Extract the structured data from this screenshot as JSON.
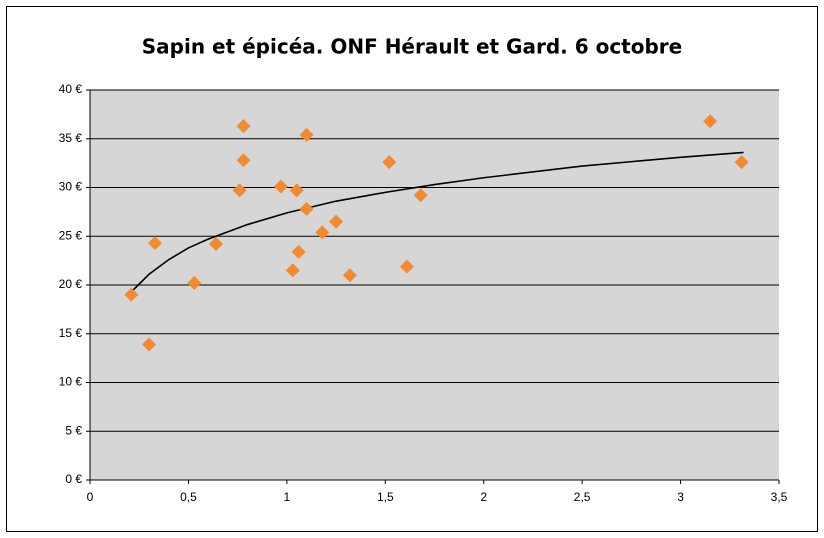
{
  "chart_data": {
    "type": "scatter",
    "title": "Sapin et épicéa. ONF Hérault et Gard. 6 octobre",
    "series": [
      {
        "color": "#f28a30",
        "x": [
          0.21,
          0.3,
          0.33,
          0.53,
          0.64,
          0.76,
          0.78,
          0.78,
          0.97,
          1.03,
          1.05,
          1.06,
          1.1,
          1.1,
          1.18,
          1.25,
          1.32,
          1.52,
          1.61,
          1.68,
          3.15,
          3.31
        ],
        "values": [
          19.0,
          13.9,
          24.3,
          20.2,
          24.2,
          29.7,
          36.3,
          32.8,
          30.1,
          21.5,
          29.7,
          23.4,
          35.4,
          27.8,
          25.4,
          26.5,
          21.0,
          32.6,
          21.9,
          29.2,
          36.8,
          32.6
        ]
      }
    ],
    "trendline": {
      "type": "logarithmic",
      "color": "#000000",
      "x": [
        0.22,
        0.3,
        0.4,
        0.5,
        0.6,
        0.8,
        1.0,
        1.25,
        1.5,
        1.75,
        2.0,
        2.5,
        3.0,
        3.32
      ],
      "values": [
        19.5,
        21.1,
        22.6,
        23.8,
        24.7,
        26.2,
        27.4,
        28.6,
        29.5,
        30.3,
        31.0,
        32.2,
        33.1,
        33.6
      ]
    },
    "xlim": [
      0,
      3.5
    ],
    "xticks": [
      0,
      {
        "value": 0.5,
        "label": "0,5"
      },
      1,
      {
        "value": 1.5,
        "label": "1,5"
      },
      2,
      {
        "value": 2.5,
        "label": "2,5"
      },
      3,
      {
        "value": 3.5,
        "label": "3,5"
      }
    ],
    "ylim": [
      0,
      40
    ],
    "yticks": [
      {
        "value": 0,
        "label": "0 €"
      },
      {
        "value": 5,
        "label": "5 €"
      },
      {
        "value": 10,
        "label": "10 €"
      },
      {
        "value": 15,
        "label": "15 €"
      },
      {
        "value": 20,
        "label": "20 €"
      },
      {
        "value": 25,
        "label": "25 €"
      },
      {
        "value": 30,
        "label": "30 €"
      },
      {
        "value": 35,
        "label": "35 €"
      },
      {
        "value": 40,
        "label": "40 €"
      }
    ],
    "grid": true
  }
}
